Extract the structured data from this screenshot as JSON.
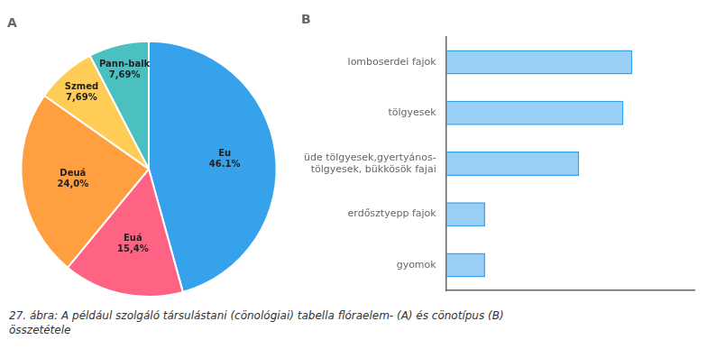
{
  "chart_data": [
    {
      "type": "pie",
      "title": "A",
      "categories": [
        "Eu",
        "Euá",
        "Deuá",
        "Szmed",
        "Pann-balk"
      ],
      "values": [
        46.1,
        15.4,
        24.0,
        7.69,
        7.69
      ],
      "value_labels": [
        "46.1%",
        "15,4%",
        "24,0%",
        "7,69%",
        "7,69%"
      ],
      "data_labels": true
    },
    {
      "type": "bar",
      "title": "B",
      "orientation": "horizontal",
      "categories": [
        "lomboserdei fajok",
        "tölgyesek",
        "üde tölgyesek,gyertyános-\ntölgyesek, bükkösök fajai",
        "erdősztyepp fajok",
        "gyomok"
      ],
      "values": [
        10.5,
        10.0,
        7.5,
        2.2,
        2.2
      ],
      "xlim": [
        0,
        14
      ],
      "grid": false,
      "tick_labels": "y"
    }
  ],
  "caption": "27. ábra: A például szolgáló társulástani (cönológiai) tabella flóraelem- (A) és cönotípus (B)\nösszetétele"
}
